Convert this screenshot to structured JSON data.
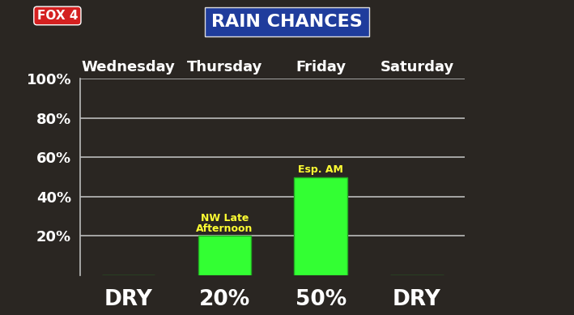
{
  "chart_data": {
    "type": "bar",
    "title": "RAIN CHANCES",
    "logo": "FOX 4",
    "categories": [
      "Wednesday",
      "Thursday",
      "Friday",
      "Saturday"
    ],
    "values": [
      0,
      20,
      50,
      0
    ],
    "value_labels": [
      "DRY",
      "20%",
      "50%",
      "DRY"
    ],
    "data_labels": true,
    "color": "#33ff33",
    "annotations": [
      {
        "category": "Thursday",
        "text": "NW Late\nAfternoon"
      },
      {
        "category": "Friday",
        "text": "Esp. AM"
      }
    ],
    "ylim": [
      0,
      100
    ],
    "yticks": [
      {
        "value": 20,
        "label": "20%"
      },
      {
        "value": 40,
        "label": "40%"
      },
      {
        "value": 60,
        "label": "60%"
      },
      {
        "value": 80,
        "label": "80%"
      },
      {
        "value": 100,
        "label": "100%"
      }
    ],
    "grid": true
  }
}
